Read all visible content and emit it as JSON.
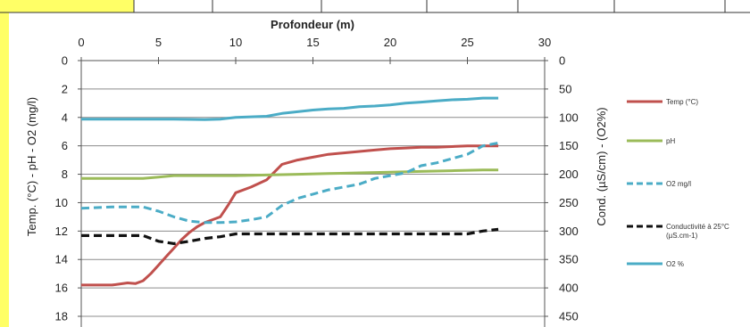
{
  "colors": {
    "left_strip": "#ffff66",
    "top_strip": "#ffff66",
    "grid": "#8c8c8c",
    "axis": "#555555"
  },
  "chart_data": {
    "type": "line",
    "x_axis": {
      "title": "Profondeur (m)",
      "position": "top",
      "range": [
        0,
        30
      ],
      "ticks": [
        0,
        5,
        10,
        15,
        20,
        25,
        30
      ]
    },
    "y_left": {
      "title": "Temp. (°C) - pH - O2 (mg/l)",
      "range": [
        0,
        18
      ],
      "inverted": true,
      "ticks": [
        0,
        2,
        4,
        6,
        8,
        10,
        12,
        14,
        16,
        18
      ]
    },
    "y_right": {
      "title": "Cond. (µS/cm) - (O2%)",
      "range": [
        0,
        450
      ],
      "inverted": true,
      "ticks": [
        0,
        50,
        100,
        150,
        200,
        250,
        300,
        350,
        400,
        450
      ]
    },
    "grid": "horizontal",
    "legend_position": "right",
    "series": [
      {
        "name": "Temp (°C)",
        "axis": "left",
        "color": "#c0504d",
        "style": "solid",
        "points": [
          [
            0,
            15.8
          ],
          [
            1,
            15.8
          ],
          [
            2,
            15.8
          ],
          [
            3,
            15.65
          ],
          [
            3.5,
            15.7
          ],
          [
            4,
            15.5
          ],
          [
            4.5,
            15
          ],
          [
            5,
            14.4
          ],
          [
            5.5,
            13.8
          ],
          [
            6,
            13.2
          ],
          [
            6.5,
            12.6
          ],
          [
            7,
            12.1
          ],
          [
            7.5,
            11.7
          ],
          [
            8,
            11.4
          ],
          [
            8.5,
            11.2
          ],
          [
            9,
            11
          ],
          [
            9.5,
            10.2
          ],
          [
            10,
            9.3
          ],
          [
            11,
            8.9
          ],
          [
            12,
            8.4
          ],
          [
            13,
            7.3
          ],
          [
            14,
            7
          ],
          [
            15,
            6.8
          ],
          [
            16,
            6.6
          ],
          [
            17,
            6.5
          ],
          [
            18,
            6.4
          ],
          [
            19,
            6.3
          ],
          [
            20,
            6.2
          ],
          [
            21,
            6.15
          ],
          [
            22,
            6.1
          ],
          [
            23,
            6.1
          ],
          [
            24,
            6.05
          ],
          [
            25,
            6
          ],
          [
            26,
            6
          ],
          [
            27,
            6
          ]
        ]
      },
      {
        "name": "pH",
        "axis": "left",
        "color": "#9bbb59",
        "style": "solid",
        "points": [
          [
            0,
            8.3
          ],
          [
            1,
            8.3
          ],
          [
            2,
            8.3
          ],
          [
            3,
            8.3
          ],
          [
            4,
            8.3
          ],
          [
            5,
            8.2
          ],
          [
            6,
            8.1
          ],
          [
            8,
            8.1
          ],
          [
            10,
            8.1
          ],
          [
            12,
            8.05
          ],
          [
            14,
            8
          ],
          [
            16,
            7.95
          ],
          [
            18,
            7.9
          ],
          [
            20,
            7.85
          ],
          [
            22,
            7.8
          ],
          [
            24,
            7.75
          ],
          [
            26,
            7.7
          ],
          [
            27,
            7.7
          ]
        ]
      },
      {
        "name": "O2  mg/l",
        "axis": "left",
        "color": "#4bacc6",
        "style": "dashed",
        "points": [
          [
            0,
            10.4
          ],
          [
            1,
            10.35
          ],
          [
            2,
            10.3
          ],
          [
            3,
            10.3
          ],
          [
            4,
            10.3
          ],
          [
            5,
            10.6
          ],
          [
            6,
            11
          ],
          [
            7,
            11.3
          ],
          [
            8,
            11.4
          ],
          [
            9,
            11.4
          ],
          [
            10,
            11.35
          ],
          [
            11,
            11.2
          ],
          [
            12,
            11
          ],
          [
            13,
            10.2
          ],
          [
            14,
            9.7
          ],
          [
            15,
            9.4
          ],
          [
            16,
            9.1
          ],
          [
            17,
            8.9
          ],
          [
            18,
            8.7
          ],
          [
            19,
            8.3
          ],
          [
            20,
            8.1
          ],
          [
            21,
            7.9
          ],
          [
            22,
            7.4
          ],
          [
            23,
            7.2
          ],
          [
            24,
            6.9
          ],
          [
            25,
            6.6
          ],
          [
            26,
            6
          ],
          [
            27,
            5.8
          ]
        ]
      },
      {
        "name": "Conductivité à 25°C (µS.cm-1)",
        "axis": "right",
        "color": "#111111",
        "style": "dashed",
        "points": [
          [
            0,
            308
          ],
          [
            2,
            308
          ],
          [
            4,
            308
          ],
          [
            5,
            318
          ],
          [
            6,
            322
          ],
          [
            7,
            318
          ],
          [
            8,
            313
          ],
          [
            9,
            310
          ],
          [
            10,
            305
          ],
          [
            12,
            305
          ],
          [
            14,
            305
          ],
          [
            16,
            305
          ],
          [
            18,
            305
          ],
          [
            20,
            305
          ],
          [
            22,
            305
          ],
          [
            24,
            305
          ],
          [
            25,
            305
          ],
          [
            26,
            300
          ],
          [
            27,
            297
          ]
        ]
      },
      {
        "name": "O2 %",
        "axis": "right",
        "color": "#4bacc6",
        "style": "solid",
        "points": [
          [
            0,
            103
          ],
          [
            2,
            103
          ],
          [
            4,
            103
          ],
          [
            6,
            103
          ],
          [
            8,
            104
          ],
          [
            9,
            103
          ],
          [
            10,
            100
          ],
          [
            12,
            98
          ],
          [
            13,
            93
          ],
          [
            14,
            90
          ],
          [
            15,
            87
          ],
          [
            16,
            85
          ],
          [
            17,
            84
          ],
          [
            18,
            81
          ],
          [
            19,
            80
          ],
          [
            20,
            78
          ],
          [
            21,
            75
          ],
          [
            22,
            73
          ],
          [
            23,
            71
          ],
          [
            24,
            69
          ],
          [
            25,
            68
          ],
          [
            26,
            66
          ],
          [
            27,
            66
          ]
        ]
      }
    ]
  }
}
